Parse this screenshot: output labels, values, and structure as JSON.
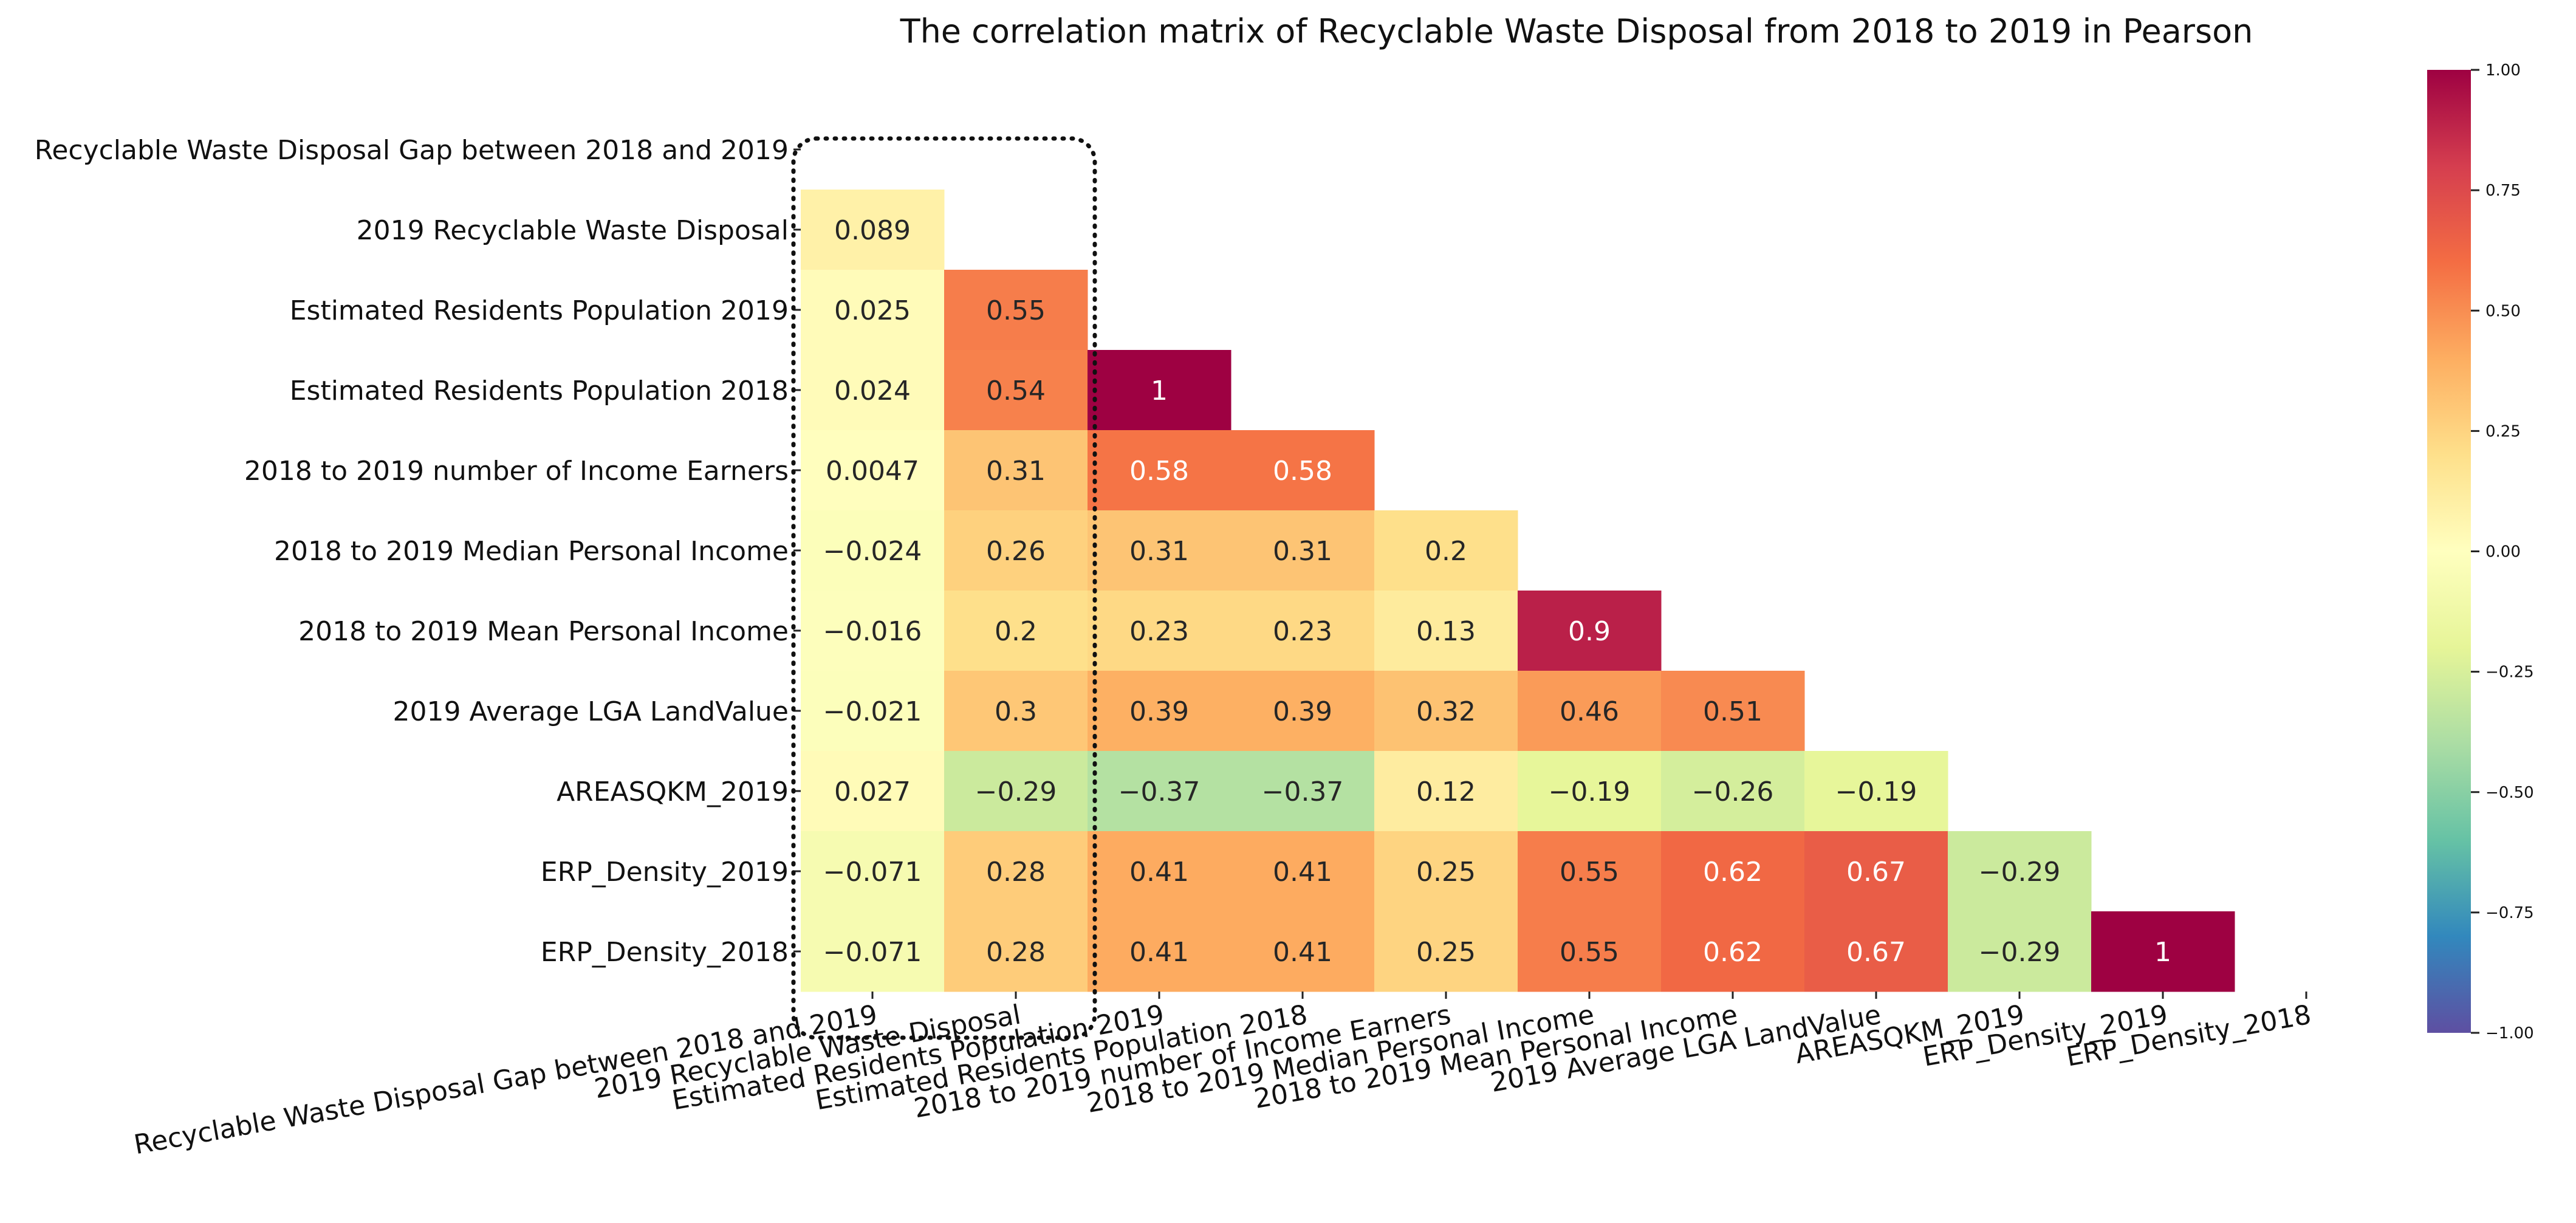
{
  "chart_data": {
    "type": "heatmap",
    "title": "The correlation matrix of Recyclable Waste Disposal from 2018 to 2019 in Pearson",
    "variables": [
      "Recyclable Waste Disposal Gap between 2018 and 2019",
      "2019 Recyclable Waste Disposal",
      "Estimated Residents Population 2019",
      "Estimated Residents Population 2018",
      "2018 to 2019 number of Income Earners",
      "2018 to 2019 Median Personal Income",
      "2018 to 2019 Mean Personal Income",
      "2019 Average LGA LandValue",
      "AREASQKM_2019",
      "ERP_Density_2019",
      "ERP_Density_2018"
    ],
    "mask": "upper-triangle-and-diagonal",
    "values": [
      [],
      [
        0.089
      ],
      [
        0.025,
        0.55
      ],
      [
        0.024,
        0.54,
        1
      ],
      [
        0.0047,
        0.31,
        0.58,
        0.58
      ],
      [
        -0.024,
        0.26,
        0.31,
        0.31,
        0.2
      ],
      [
        -0.016,
        0.2,
        0.23,
        0.23,
        0.13,
        0.9
      ],
      [
        -0.021,
        0.3,
        0.39,
        0.39,
        0.32,
        0.46,
        0.51
      ],
      [
        0.027,
        -0.29,
        -0.37,
        -0.37,
        0.12,
        -0.19,
        -0.26,
        -0.19
      ],
      [
        -0.071,
        0.28,
        0.41,
        0.41,
        0.25,
        0.55,
        0.62,
        0.67,
        -0.29
      ],
      [
        -0.071,
        0.28,
        0.41,
        0.41,
        0.25,
        0.55,
        0.62,
        0.67,
        -0.29,
        1
      ]
    ],
    "labels": [
      [],
      [
        "0.089"
      ],
      [
        "0.025",
        "0.55"
      ],
      [
        "0.024",
        "0.54",
        "1"
      ],
      [
        "0.0047",
        "0.31",
        "0.58",
        "0.58"
      ],
      [
        "−0.024",
        "0.26",
        "0.31",
        "0.31",
        "0.2"
      ],
      [
        "−0.016",
        "0.2",
        "0.23",
        "0.23",
        "0.13",
        "0.9"
      ],
      [
        "−0.021",
        "0.3",
        "0.39",
        "0.39",
        "0.32",
        "0.46",
        "0.51"
      ],
      [
        "0.027",
        "−0.29",
        "−0.37",
        "−0.37",
        "0.12",
        "−0.19",
        "−0.26",
        "−0.19"
      ],
      [
        "−0.071",
        "0.28",
        "0.41",
        "0.41",
        "0.25",
        "0.55",
        "0.62",
        "0.67",
        "−0.29"
      ],
      [
        "−0.071",
        "0.28",
        "0.41",
        "0.41",
        "0.25",
        "0.55",
        "0.62",
        "0.67",
        "−0.29",
        "1"
      ]
    ],
    "colormap": "Spectral_r",
    "colorbar": {
      "range": [
        -1,
        1
      ],
      "ticks": [
        1,
        0.75,
        0.5,
        0.25,
        0,
        -0.25,
        -0.5,
        -0.75,
        -1
      ],
      "tick_labels": [
        "1.00",
        "0.75",
        "0.50",
        "0.25",
        "0.00",
        "−0.25",
        "−0.50",
        "−0.75",
        "−1.00"
      ]
    },
    "highlight": {
      "style": "dotted-rounded-box",
      "columns": [
        0,
        1
      ]
    },
    "xlabel": "",
    "ylabel": ""
  }
}
